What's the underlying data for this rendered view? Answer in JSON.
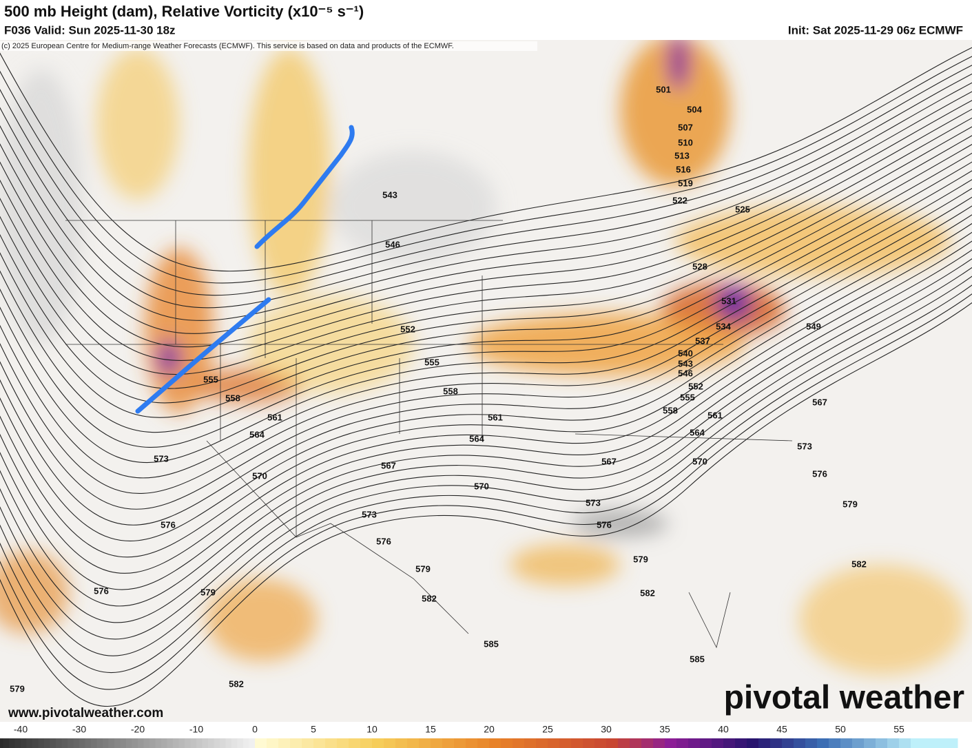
{
  "header": {
    "title": "500 mb Height (dam), Relative Vorticity (x10⁻⁵ s⁻¹)",
    "valid": "F036 Valid: Sun 2025-11-30 18z",
    "init": "Init: Sat 2025-11-29 06z ECMWF",
    "copyright": "(c) 2025 European Centre for Medium-range Weather Forecasts (ECMWF). This service is based on data and products of the ECMWF."
  },
  "map": {
    "contour_labels": [
      501,
      504,
      507,
      510,
      513,
      516,
      519,
      522,
      525,
      528,
      531,
      534,
      537,
      540,
      543,
      546,
      549,
      552,
      555,
      558,
      561,
      564,
      567,
      570,
      573,
      576,
      579,
      582,
      543,
      546,
      552,
      555,
      558,
      561,
      564,
      567,
      570,
      573,
      576,
      579,
      582,
      585,
      555,
      558,
      561,
      564,
      573,
      570,
      567,
      573,
      576,
      576,
      579,
      579,
      576,
      582,
      585,
      582,
      579
    ]
  },
  "footer": {
    "website": "www.pivotalweather.com",
    "logo": "pivotal weather"
  },
  "colorbar": {
    "ticks": [
      -40,
      -30,
      -20,
      -10,
      0,
      5,
      10,
      15,
      20,
      25,
      30,
      35,
      40,
      45,
      50,
      55
    ]
  }
}
